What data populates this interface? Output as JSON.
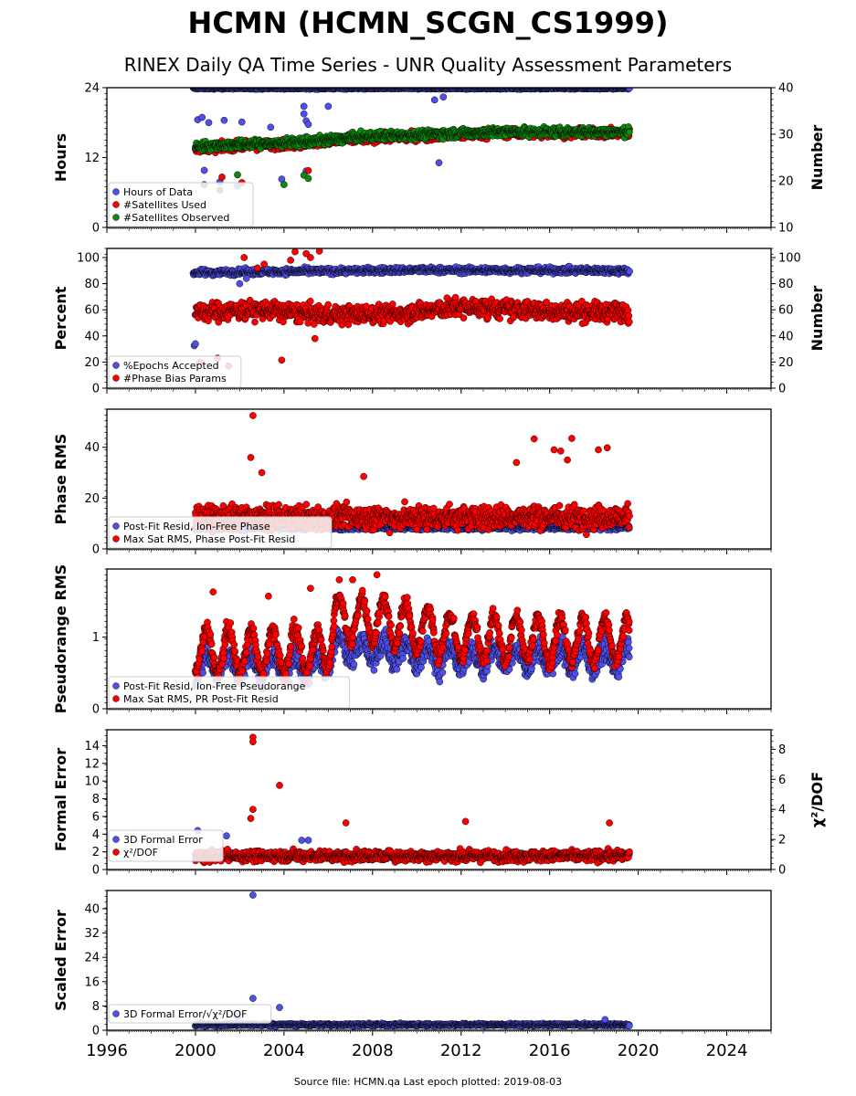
{
  "title": "HCMN (HCMN_SCGN_CS1999)",
  "subtitle": "RINEX Daily QA Time Series - UNR Quality Assessment Parameters",
  "source_note": "Source file: HCMN.qa Last epoch plotted: 2019-08-03",
  "x_axis": {
    "min": 1996,
    "max": 2026,
    "ticks": [
      1996,
      2000,
      2004,
      2008,
      2012,
      2016,
      2020,
      2024
    ]
  },
  "colors": {
    "blue": "#4f4fea",
    "red": "#ff0000",
    "green": "#0d8a0d",
    "edge": "#000000"
  },
  "chart_data": [
    {
      "type": "scatter",
      "ylabel": "Hours",
      "ylabel_right": "Number",
      "ylim": [
        0,
        24
      ],
      "yticks": [
        "0",
        "12",
        "24"
      ],
      "ylim_right": [
        10,
        40
      ],
      "yticks_right": [
        "10",
        "20",
        "30",
        "40"
      ],
      "legend": [
        "Hours of Data",
        "#Satellites Used",
        "#Satellites Observed"
      ],
      "series": [
        {
          "name": "Hours of Data",
          "color": "blue",
          "axis": "left",
          "x_range": [
            1999.9,
            2019.6
          ],
          "baseline": 23.9,
          "spread": 0.15,
          "outliers": [
            [
              2000.1,
              18.5
            ],
            [
              2000.3,
              18.9
            ],
            [
              2000.6,
              18.0
            ],
            [
              2001.3,
              18.4
            ],
            [
              2002.1,
              18.1
            ],
            [
              2003.4,
              17.2
            ],
            [
              2004.9,
              20.8
            ],
            [
              2004.9,
              19.5
            ],
            [
              2005.0,
              18.3
            ],
            [
              2005.0,
              15.6
            ],
            [
              2005.1,
              17.7
            ],
            [
              2006.0,
              20.8
            ],
            [
              2010.8,
              21.9
            ],
            [
              2011.2,
              22.4
            ],
            [
              2011.0,
              11.1
            ],
            [
              2000.4,
              9.8
            ],
            [
              2001.1,
              7.8
            ],
            [
              2001.9,
              7.1
            ],
            [
              2000.2,
              13.0
            ],
            [
              2004.1,
              15.0
            ],
            [
              2003.9,
              8.3
            ],
            [
              2005.0,
              9.7
            ]
          ]
        },
        {
          "name": "#Satellites Used",
          "color": "red",
          "axis": "right",
          "x_range": [
            2000.0,
            2019.6
          ],
          "trend": [
            [
              2000,
              27.0
            ],
            [
              2002,
              27.5
            ],
            [
              2004,
              27.8
            ],
            [
              2006,
              28.5
            ],
            [
              2008,
              29.2
            ],
            [
              2011,
              29.7
            ],
            [
              2014,
              30.2
            ],
            [
              2019.6,
              30.2
            ]
          ],
          "spread": 0.9,
          "outliers": [
            [
              2001.2,
              20.8
            ],
            [
              2002.1,
              19.6
            ],
            [
              2005.1,
              22.2
            ],
            [
              2009.4,
              29.0
            ]
          ]
        },
        {
          "name": "#Satellites Observed",
          "color": "green",
          "axis": "right",
          "x_range": [
            2000.0,
            2019.6
          ],
          "trend": [
            [
              2000,
              27.4
            ],
            [
              2002,
              27.8
            ],
            [
              2004,
              28.1
            ],
            [
              2006,
              28.8
            ],
            [
              2008,
              29.6
            ],
            [
              2011,
              30.1
            ],
            [
              2014,
              30.5
            ],
            [
              2019.6,
              30.5
            ]
          ],
          "spread": 0.9,
          "outliers": [
            [
              2000.4,
              19.2
            ],
            [
              2001.9,
              21.3
            ],
            [
              2001.1,
              18.0
            ],
            [
              2004.0,
              19.2
            ],
            [
              2004.9,
              21.2
            ],
            [
              2005.1,
              20.5
            ]
          ]
        }
      ]
    },
    {
      "type": "scatter",
      "ylabel": "Percent",
      "ylabel_right": "Number",
      "ylim": [
        0,
        107
      ],
      "yticks": [
        "0",
        "20",
        "40",
        "60",
        "80",
        "100"
      ],
      "ylim_right": [
        0,
        107
      ],
      "yticks_right": [
        "0",
        "20",
        "40",
        "60",
        "80",
        "100"
      ],
      "legend": [
        "%Epochs Accepted",
        "#Phase Bias Params"
      ],
      "series": [
        {
          "name": "%Epochs Accepted",
          "color": "blue",
          "axis": "left",
          "x_range": [
            1999.9,
            2019.6
          ],
          "trend": [
            [
              2000,
              88.5
            ],
            [
              2005,
              89.5
            ],
            [
              2010,
              90.5
            ],
            [
              2019.6,
              90.0
            ]
          ],
          "spread": 2.2,
          "outliers": [
            [
              1999.95,
              32.5
            ],
            [
              2000.0,
              34.0
            ],
            [
              2002.0,
              80.0
            ],
            [
              2002.3,
              84.0
            ]
          ]
        },
        {
          "name": "#Phase Bias Params",
          "color": "red",
          "axis": "right",
          "x_range": [
            2000.0,
            2019.6
          ],
          "trend": [
            [
              2000,
              58
            ],
            [
              2003,
              60
            ],
            [
              2006,
              56
            ],
            [
              2009,
              57
            ],
            [
              2012,
              62
            ],
            [
              2016,
              59
            ],
            [
              2019.6,
              58
            ]
          ],
          "spread": 7.0,
          "outliers": [
            [
              2000.2,
              20.0
            ],
            [
              2001.0,
              23.0
            ],
            [
              2001.5,
              17.0
            ],
            [
              2002.2,
              100.0
            ],
            [
              2003.1,
              95.0
            ],
            [
              2003.9,
              21.5
            ],
            [
              2004.3,
              98.0
            ],
            [
              2005.0,
              103.0
            ],
            [
              2005.6,
              105.0
            ],
            [
              2005.2,
              100.0
            ],
            [
              2004.5,
              104.5
            ],
            [
              2005.4,
              38.0
            ],
            [
              2002.8,
              92.0
            ]
          ]
        }
      ]
    },
    {
      "type": "scatter",
      "ylabel": "Phase RMS",
      "ylim": [
        0,
        55
      ],
      "yticks": [
        "0",
        "20",
        "40"
      ],
      "legend": [
        "Post-Fit Resid, Ion-Free Phase",
        "Max Sat RMS, Phase Post-Fit Resid"
      ],
      "series": [
        {
          "name": "Post-Fit Resid, Ion-Free Phase",
          "color": "blue",
          "axis": "left",
          "x_range": [
            2000.0,
            2019.6
          ],
          "trend": [
            [
              2000,
              8.5
            ],
            [
              2010,
              8.5
            ],
            [
              2019.6,
              8.5
            ]
          ],
          "spread": 1.0,
          "outliers": []
        },
        {
          "name": "Max Sat RMS, Phase Post-Fit Resid",
          "color": "red",
          "axis": "left",
          "x_range": [
            2000.0,
            2019.6
          ],
          "trend": [
            [
              2000,
              12.5
            ],
            [
              2010,
              12.5
            ],
            [
              2019.6,
              12.5
            ]
          ],
          "spread": 4.5,
          "outliers": [
            [
              2002.6,
              52.5
            ],
            [
              2002.5,
              36.0
            ],
            [
              2003.0,
              30.0
            ],
            [
              2015.3,
              43.3
            ],
            [
              2017.0,
              43.5
            ],
            [
              2016.2,
              39.0
            ],
            [
              2016.5,
              38.5
            ],
            [
              2018.2,
              39.0
            ],
            [
              2018.6,
              39.8
            ],
            [
              2014.5,
              34.0
            ],
            [
              2007.6,
              28.5
            ],
            [
              2016.8,
              35.0
            ]
          ]
        }
      ]
    },
    {
      "type": "scatter",
      "ylabel": "Pseudorange RMS",
      "ylim": [
        0,
        1.95
      ],
      "yticks": [
        "0",
        "1"
      ],
      "legend": [
        "Post-Fit Resid, Ion-Free Pseudorange",
        "Max Sat RMS, PR Post-Fit Resid"
      ],
      "series": [
        {
          "name": "Post-Fit Resid, Ion-Free Pseudorange",
          "color": "blue",
          "axis": "left",
          "x_range": [
            2000.0,
            2019.6
          ],
          "trend": [
            [
              2000,
              0.6
            ],
            [
              2005.9,
              0.6
            ],
            [
              2006.2,
              0.85
            ],
            [
              2008,
              0.8
            ],
            [
              2012,
              0.7
            ],
            [
              2019.6,
              0.7
            ]
          ],
          "spread": 0.15,
          "seasonal": 0.15,
          "outliers": []
        },
        {
          "name": "Max Sat RMS, PR Post-Fit Resid",
          "color": "red",
          "axis": "left",
          "x_range": [
            2000.0,
            2019.6
          ],
          "trend": [
            [
              2000,
              0.8
            ],
            [
              2005.9,
              0.8
            ],
            [
              2006.3,
              1.25
            ],
            [
              2008,
              1.25
            ],
            [
              2012,
              1.0
            ],
            [
              2019.6,
              0.95
            ]
          ],
          "spread": 0.12,
          "seasonal": 0.3,
          "outliers": [
            [
              2000.8,
              1.63
            ],
            [
              2003.3,
              1.57
            ],
            [
              2005.2,
              1.68
            ],
            [
              2006.5,
              1.8
            ],
            [
              2007.1,
              1.8
            ],
            [
              2008.2,
              1.87
            ]
          ]
        }
      ]
    },
    {
      "type": "scatter",
      "ylabel": "Formal Error",
      "ylabel_right": "χ²/DOF",
      "ylim": [
        0,
        15.8
      ],
      "yticks": [
        "0",
        "2",
        "4",
        "6",
        "8",
        "10",
        "12",
        "14"
      ],
      "ylim_right": [
        0,
        9.3
      ],
      "yticks_right": [
        "0",
        "2",
        "4",
        "6",
        "8"
      ],
      "legend": [
        "3D Formal Error",
        "χ²/DOF"
      ],
      "series": [
        {
          "name": "3D Formal Error",
          "color": "blue",
          "axis": "left",
          "x_range": [
            2000.0,
            2019.6
          ],
          "trend": [
            [
              2000,
              1.6
            ],
            [
              2019.6,
              1.6
            ]
          ],
          "spread": 0.25,
          "outliers": [
            [
              2000.1,
              4.4
            ],
            [
              2001.4,
              3.8
            ],
            [
              2004.8,
              3.3
            ],
            [
              2005.1,
              3.3
            ]
          ]
        },
        {
          "name": "χ²/DOF",
          "color": "red",
          "axis": "right",
          "x_range": [
            2000.0,
            2019.6
          ],
          "trend": [
            [
              2000,
              0.9
            ],
            [
              2019.6,
              0.9
            ]
          ],
          "spread": 0.35,
          "outliers": [
            [
              2002.6,
              8.8
            ],
            [
              2002.6,
              8.5
            ],
            [
              2003.8,
              5.6
            ],
            [
              2002.6,
              4.0
            ],
            [
              2002.5,
              3.4
            ],
            [
              2018.7,
              3.1
            ],
            [
              2012.2,
              3.2
            ],
            [
              2006.8,
              3.1
            ]
          ]
        }
      ]
    },
    {
      "type": "scatter",
      "ylabel": "Scaled Error",
      "ylim": [
        0,
        46
      ],
      "yticks": [
        "0",
        "8",
        "16",
        "24",
        "32",
        "40"
      ],
      "legend": [
        "3D Formal Error/√χ²/DOF"
      ],
      "series": [
        {
          "name": "3D Formal Error/√χ²/DOF",
          "color": "blue",
          "axis": "left",
          "x_range": [
            2000.0,
            2019.6
          ],
          "trend": [
            [
              2000,
              1.8
            ],
            [
              2019.6,
              1.8
            ]
          ],
          "spread": 0.4,
          "outliers": [
            [
              2002.6,
              44.5
            ],
            [
              2002.6,
              10.5
            ],
            [
              2003.8,
              7.5
            ],
            [
              2001.9,
              4.5
            ],
            [
              2018.5,
              3.5
            ]
          ]
        }
      ]
    }
  ]
}
